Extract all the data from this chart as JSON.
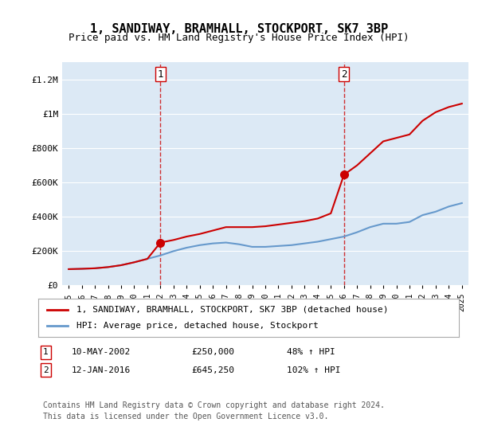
{
  "title": "1, SANDIWAY, BRAMHALL, STOCKPORT, SK7 3BP",
  "subtitle": "Price paid vs. HM Land Registry's House Price Index (HPI)",
  "bg_color": "#dce9f5",
  "plot_bg_color": "#dce9f5",
  "ylim": [
    0,
    1300000
  ],
  "yticks": [
    0,
    200000,
    400000,
    600000,
    800000,
    1000000,
    1200000
  ],
  "ytick_labels": [
    "£0",
    "£200K",
    "£400K",
    "£600K",
    "£800K",
    "£1M",
    "£1.2M"
  ],
  "sale1_date_idx": 7.3,
  "sale1_price": 250000,
  "sale1_label": "1",
  "sale1_year": "2002",
  "sale2_date_idx": 21.1,
  "sale2_price": 645250,
  "sale2_label": "2",
  "sale2_year": "2016",
  "sale1_color": "#cc0000",
  "sale2_color": "#cc0000",
  "hpi_color": "#6699cc",
  "price_color": "#cc0000",
  "legend_label_price": "1, SANDIWAY, BRAMHALL, STOCKPORT, SK7 3BP (detached house)",
  "legend_label_hpi": "HPI: Average price, detached house, Stockport",
  "annotation1": "1    10-MAY-2002    £250,000    48% ↑ HPI",
  "annotation2": "2    12-JAN-2016    £645,250    102% ↑ HPI",
  "footer1": "Contains HM Land Registry data © Crown copyright and database right 2024.",
  "footer2": "This data is licensed under the Open Government Licence v3.0.",
  "xticklabels": [
    "1995",
    "1996",
    "1997",
    "1998",
    "1999",
    "2000",
    "2001",
    "2002",
    "2003",
    "2004",
    "2005",
    "2006",
    "2007",
    "2008",
    "2009",
    "2010",
    "2011",
    "2012",
    "2013",
    "2014",
    "2015",
    "2016",
    "2017",
    "2018",
    "2019",
    "2020",
    "2021",
    "2022",
    "2023",
    "2024",
    "2025"
  ],
  "hpi_values": [
    95000,
    97000,
    100000,
    107000,
    118000,
    135000,
    155000,
    175000,
    200000,
    220000,
    235000,
    245000,
    250000,
    240000,
    225000,
    225000,
    230000,
    235000,
    245000,
    255000,
    270000,
    285000,
    310000,
    340000,
    360000,
    360000,
    370000,
    410000,
    430000,
    460000,
    480000
  ],
  "price_values_hpi_adjusted": [
    95000,
    97000,
    100000,
    107000,
    118000,
    135000,
    155000,
    250000,
    265000,
    285000,
    300000,
    320000,
    340000,
    340000,
    340000,
    345000,
    355000,
    365000,
    375000,
    390000,
    420000,
    645250,
    700000,
    770000,
    840000,
    860000,
    880000,
    960000,
    1010000,
    1040000,
    1060000
  ]
}
